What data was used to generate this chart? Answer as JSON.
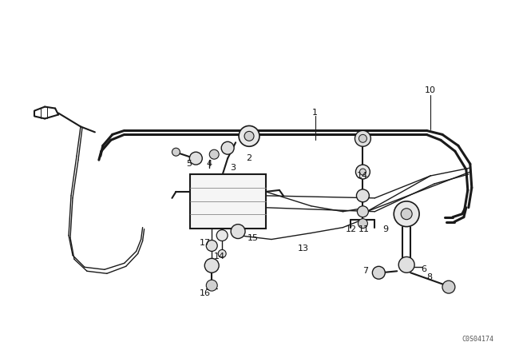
{
  "bg_color": "#ffffff",
  "line_color": "#1a1a1a",
  "text_color": "#111111",
  "figsize": [
    6.4,
    4.48
  ],
  "dpi": 100,
  "watermark": "C0S04174"
}
